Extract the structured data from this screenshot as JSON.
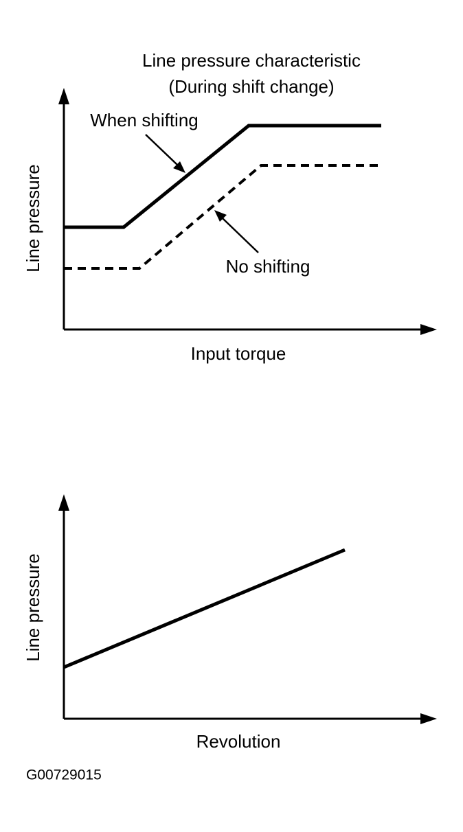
{
  "top": {
    "title": [
      "Line pressure characteristic",
      "(During shift change)"
    ],
    "y_label": "Line pressure",
    "x_label": "Input torque",
    "annotations": [
      "When shifting",
      "No shifting"
    ]
  },
  "bottom": {
    "y_label": "Line pressure",
    "x_label": "Revolution"
  },
  "figure_id": "G00729015"
}
